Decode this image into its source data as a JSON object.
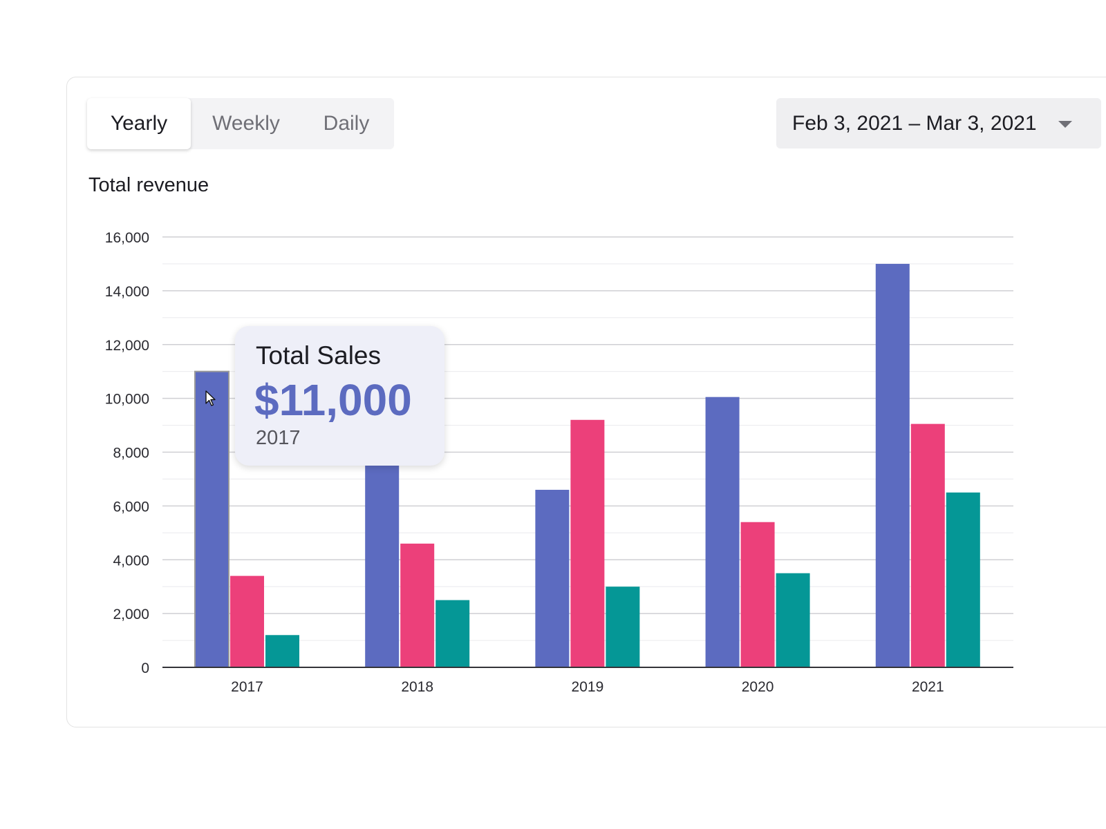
{
  "tabs": [
    {
      "label": "Yearly",
      "active": true
    },
    {
      "label": "Weekly",
      "active": false
    },
    {
      "label": "Daily",
      "active": false
    }
  ],
  "date_range": {
    "label": "Feb 3, 2021 – Mar 3, 2021",
    "icon": "chevron-down-icon"
  },
  "section_title": "Total revenue",
  "tooltip": {
    "title": "Total Sales",
    "value": "$11,000",
    "category": "2017"
  },
  "colors": {
    "series_1": "#5c6bc0",
    "series_2": "#ec407a",
    "series_3": "#059796",
    "hovered_outline": "#9a9a9a"
  },
  "chart_data": {
    "type": "bar",
    "title": "",
    "xlabel": "",
    "ylabel": "",
    "categories": [
      "2017",
      "2018",
      "2019",
      "2020",
      "2021"
    ],
    "series": [
      {
        "values": [
          11000,
          7500,
          6600,
          10050,
          15000
        ]
      },
      {
        "values": [
          3400,
          4600,
          9200,
          5400,
          9050
        ]
      },
      {
        "values": [
          1200,
          2500,
          3000,
          3500,
          6500
        ]
      }
    ],
    "ylim": [
      0,
      16000
    ],
    "y_ticks": [
      "0",
      "2,000",
      "4,000",
      "6,000",
      "8,000",
      "10,000",
      "12,000",
      "14,000",
      "16,000"
    ],
    "y_tick_values": [
      0,
      2000,
      4000,
      6000,
      8000,
      10000,
      12000,
      14000,
      16000
    ],
    "grid": true,
    "legend": "none",
    "highlighted": {
      "category": "2017",
      "series_index": 0
    }
  }
}
